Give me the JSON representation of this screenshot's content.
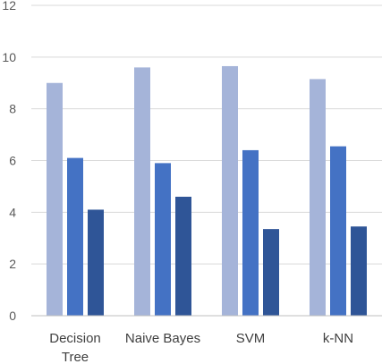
{
  "chart_data": {
    "type": "bar",
    "title": "",
    "xlabel": "",
    "ylabel": "",
    "categories": [
      [
        "Decision",
        "Tree"
      ],
      [
        "Naive Bayes"
      ],
      [
        "SVM"
      ],
      [
        "k-NN"
      ]
    ],
    "series": [
      {
        "values": [
          9.0,
          9.6,
          9.65,
          9.15
        ],
        "color": "#a5b4d9"
      },
      {
        "values": [
          6.1,
          5.9,
          6.4,
          6.55
        ],
        "color": "#4472c4"
      },
      {
        "values": [
          4.1,
          4.6,
          3.35,
          3.45
        ],
        "color": "#2f5597"
      }
    ],
    "ylim": [
      0,
      12
    ],
    "yticks": [
      0,
      2,
      4,
      6,
      8,
      10,
      12
    ],
    "grid": true,
    "legend": "none"
  },
  "colors": {
    "grid": "#d9d9d9",
    "axis": "#bfbfbf"
  }
}
